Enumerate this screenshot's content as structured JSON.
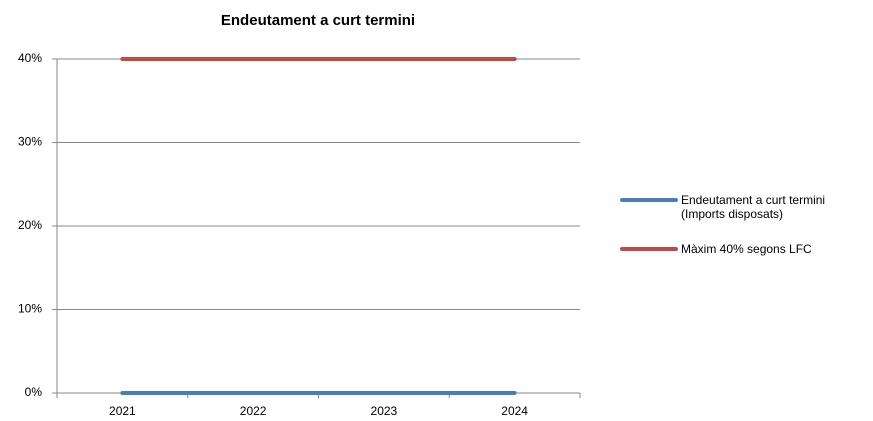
{
  "chart_data": {
    "type": "line",
    "title": "Endeutament a curt termini",
    "categories": [
      "2021",
      "2022",
      "2023",
      "2024"
    ],
    "series": [
      {
        "name": "Endeutament a curt termini (Imports disposats)",
        "color": "#4a7ebb",
        "values": [
          0,
          0,
          0,
          0
        ]
      },
      {
        "name": "Màxim 40% segons LFC",
        "color": "#be4b48",
        "values": [
          40,
          40,
          40,
          40
        ]
      }
    ],
    "ylim": [
      0,
      40
    ],
    "yticks": [
      {
        "value": 0,
        "label": "0%"
      },
      {
        "value": 10,
        "label": "10%"
      },
      {
        "value": 20,
        "label": "20%"
      },
      {
        "value": 30,
        "label": "30%"
      },
      {
        "value": 40,
        "label": "40%"
      }
    ],
    "grid": true,
    "legend": "right"
  }
}
